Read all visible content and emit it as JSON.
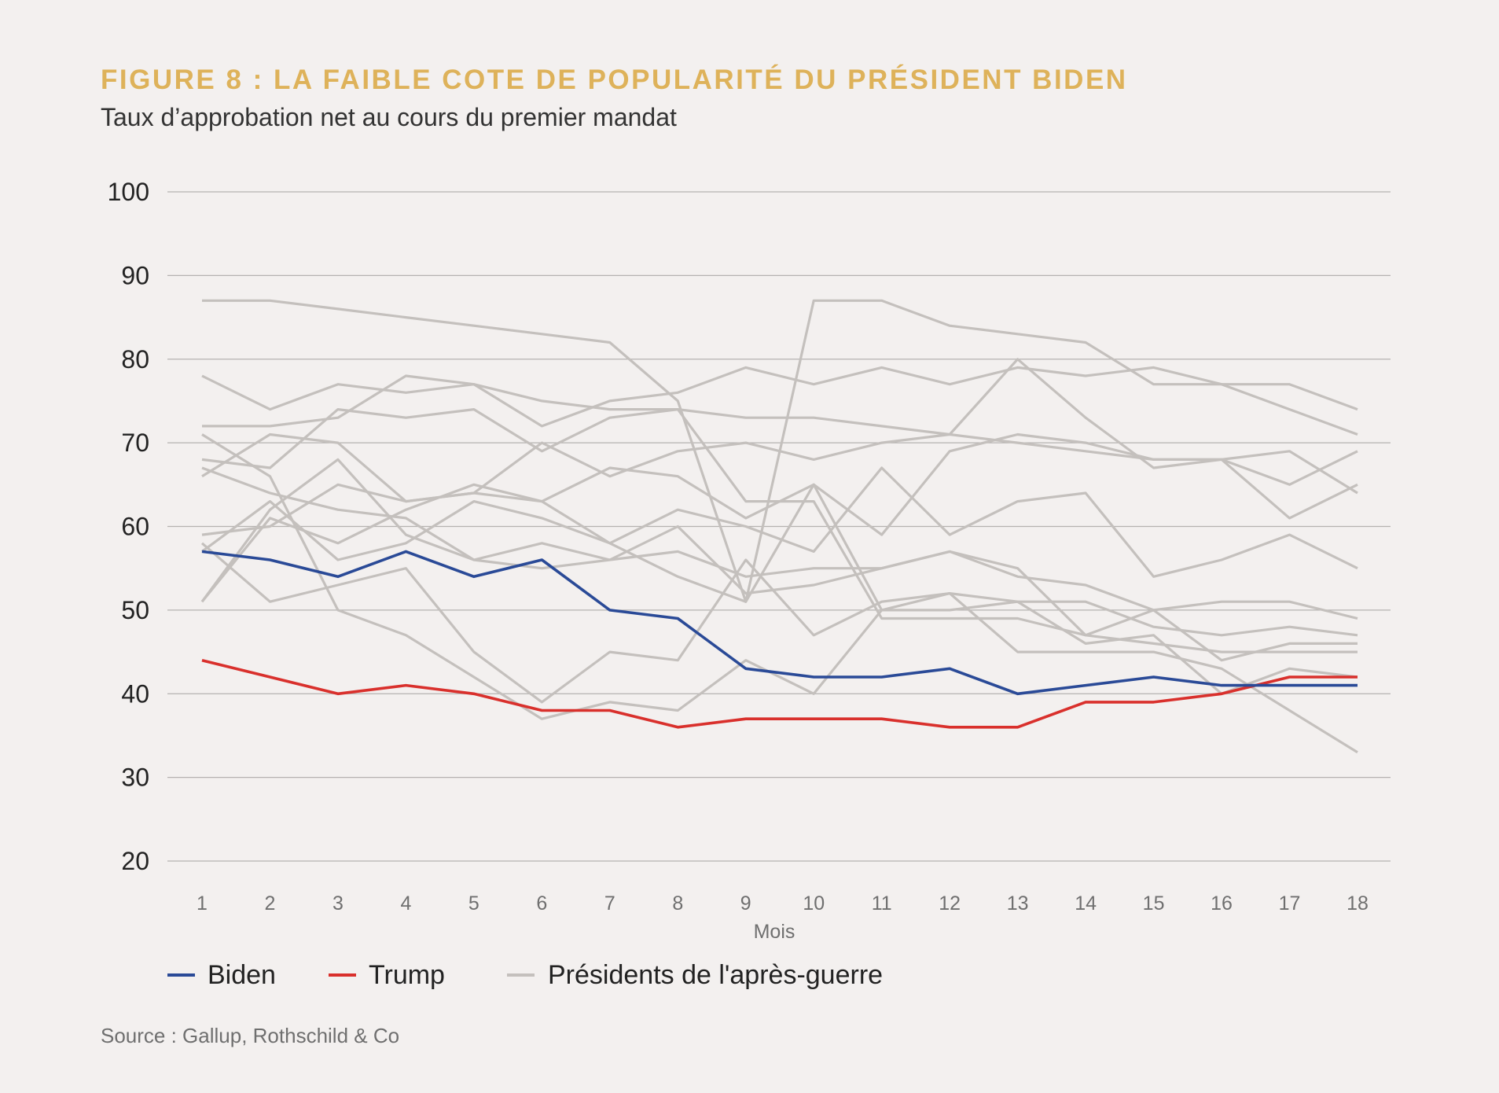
{
  "header": {
    "title": "FIGURE 8 : LA FAIBLE COTE DE POPULARITÉ DU PRÉSIDENT BIDEN",
    "subtitle": "Taux d’approbation net au cours du premier mandat"
  },
  "footer": {
    "source": "Source : Gallup, Rothschild & Co"
  },
  "colors": {
    "biden": "#2a4a97",
    "trump": "#d9302c",
    "others": "#c4c0bd",
    "grid": "#b5b2b0",
    "accent": "#deb25a"
  },
  "chart_data": {
    "type": "line",
    "title": "FIGURE 8 : LA FAIBLE COTE DE POPULARITÉ DU PRÉSIDENT BIDEN",
    "subtitle": "Taux d’approbation net au cours du premier mandat",
    "xlabel": "Mois",
    "ylabel": "",
    "x": [
      1,
      2,
      3,
      4,
      5,
      6,
      7,
      8,
      9,
      10,
      11,
      12,
      13,
      14,
      15,
      16,
      17,
      18
    ],
    "ylim": [
      20,
      100
    ],
    "yticks": [
      20,
      30,
      40,
      50,
      60,
      70,
      80,
      90,
      100
    ],
    "grid": true,
    "legend_position": "bottom",
    "legend": [
      "Biden",
      "Trump",
      "Présidents de l'après-guerre"
    ],
    "series": [
      {
        "name": "Biden",
        "color": "#2a4a97",
        "values": [
          57,
          56,
          54,
          57,
          54,
          56,
          50,
          49,
          43,
          42,
          42,
          43,
          40,
          41,
          42,
          41,
          41,
          41
        ]
      },
      {
        "name": "Trump",
        "color": "#d9302c",
        "values": [
          44,
          42,
          40,
          41,
          40,
          38,
          38,
          36,
          37,
          37,
          37,
          36,
          36,
          39,
          39,
          40,
          42,
          42
        ]
      }
    ],
    "background_series": [
      [
        87,
        87,
        86,
        85,
        84,
        83,
        82,
        75,
        51,
        87,
        87,
        84,
        83,
        82,
        77,
        77,
        77,
        74
      ],
      [
        78,
        74,
        77,
        76,
        77,
        75,
        74,
        74,
        73,
        73,
        72,
        71,
        70,
        69,
        68,
        68,
        65,
        69
      ],
      [
        72,
        72,
        73,
        78,
        77,
        72,
        75,
        76,
        79,
        77,
        79,
        77,
        79,
        78,
        79,
        77,
        74,
        71
      ],
      [
        66,
        71,
        70,
        63,
        64,
        70,
        66,
        69,
        70,
        68,
        70,
        71,
        80,
        73,
        67,
        68,
        61,
        65
      ],
      [
        71,
        66,
        50,
        47,
        42,
        37,
        39,
        38,
        44,
        40,
        50,
        52,
        51,
        51,
        48,
        47,
        48,
        47
      ],
      [
        67,
        64,
        62,
        61,
        56,
        58,
        56,
        60,
        52,
        53,
        55,
        57,
        55,
        47,
        50,
        51,
        51,
        49
      ],
      [
        68,
        67,
        74,
        73,
        74,
        69,
        73,
        74,
        63,
        63,
        49,
        49,
        49,
        47,
        46,
        45,
        45,
        45
      ],
      [
        51,
        62,
        68,
        59,
        56,
        55,
        56,
        57,
        54,
        55,
        55,
        57,
        54,
        53,
        50,
        44,
        46,
        46
      ],
      [
        58,
        51,
        53,
        55,
        45,
        39,
        45,
        44,
        56,
        47,
        51,
        52,
        45,
        45,
        45,
        43,
        38,
        33
      ],
      [
        59,
        60,
        65,
        63,
        64,
        63,
        58,
        54,
        51,
        65,
        59,
        69,
        71,
        70,
        68,
        68,
        69,
        64
      ],
      [
        57,
        63,
        56,
        58,
        63,
        61,
        58,
        62,
        60,
        57,
        67,
        59,
        63,
        64,
        54,
        56,
        59,
        55
      ],
      [
        51,
        61,
        58,
        62,
        65,
        63,
        67,
        66,
        61,
        65,
        50,
        50,
        51,
        46,
        47,
        40,
        43,
        42
      ]
    ]
  }
}
